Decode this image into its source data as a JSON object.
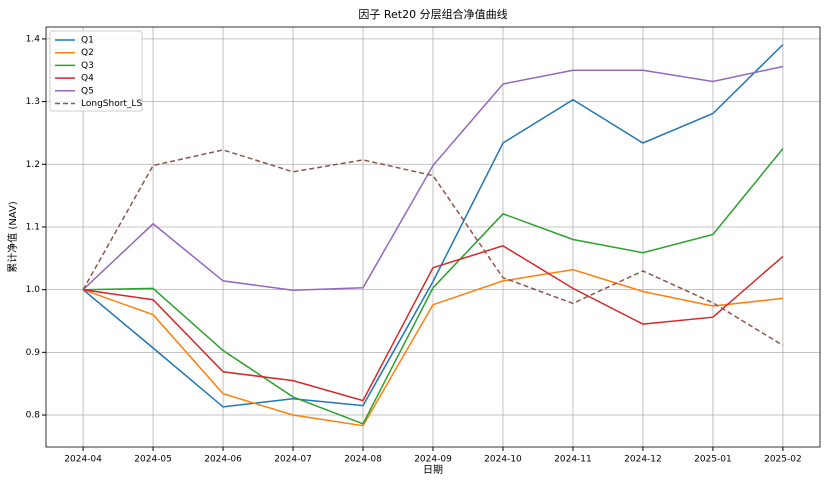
{
  "chart_data": {
    "type": "line",
    "title": "因子 Ret20 分层组合净值曲线",
    "xlabel": "日期",
    "ylabel": "累计净值 (NAV)",
    "x": [
      "2024-04",
      "2024-05",
      "2024-06",
      "2024-07",
      "2024-08",
      "2024-09",
      "2024-10",
      "2024-11",
      "2024-12",
      "2025-01",
      "2025-02"
    ],
    "ylim": [
      0.749,
      1.419
    ],
    "yticks": [
      0.8,
      0.9,
      {
        "value": 1,
        "label": "1.0"
      },
      1.1,
      1.2,
      1.3,
      1.4
    ],
    "grid": true,
    "legend": "upper-left",
    "series": [
      {
        "name": "Q1",
        "color": "#1f77b4",
        "linestyle": "solid",
        "values": [
          1.0,
          0.907,
          0.813,
          0.826,
          0.815,
          1.013,
          1.234,
          1.303,
          1.234,
          1.281,
          1.391
        ]
      },
      {
        "name": "Q2",
        "color": "#ff7f0e",
        "linestyle": "solid",
        "values": [
          1.0,
          0.96,
          0.834,
          0.8,
          0.783,
          0.976,
          1.014,
          1.032,
          0.997,
          0.974,
          0.986
        ]
      },
      {
        "name": "Q3",
        "color": "#2ca02c",
        "linestyle": "solid",
        "values": [
          1.0,
          1.002,
          0.903,
          0.829,
          0.786,
          1.003,
          1.121,
          1.08,
          1.059,
          1.088,
          1.225
        ]
      },
      {
        "name": "Q4",
        "color": "#d62728",
        "linestyle": "solid",
        "values": [
          1.0,
          0.984,
          0.869,
          0.855,
          0.823,
          1.035,
          1.07,
          1.002,
          0.945,
          0.956,
          1.053
        ]
      },
      {
        "name": "Q5",
        "color": "#9467bd",
        "linestyle": "solid",
        "values": [
          1.0,
          1.105,
          1.014,
          0.999,
          1.003,
          1.198,
          1.328,
          1.35,
          1.35,
          1.332,
          1.356
        ]
      },
      {
        "name": "LongShort_LS",
        "color": "#8c564b",
        "linestyle": "dashed",
        "values": [
          1.0,
          1.198,
          1.223,
          1.188,
          1.207,
          1.182,
          1.019,
          0.978,
          1.03,
          0.979,
          0.911
        ]
      }
    ]
  }
}
